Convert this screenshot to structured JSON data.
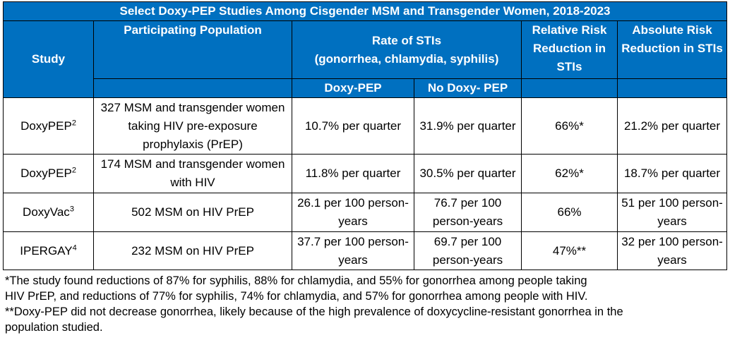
{
  "table": {
    "title": "Select Doxy-PEP Studies Among Cisgender MSM and Transgender Women, 2018-2023",
    "headers": {
      "study": "Study",
      "population": "Participating Population",
      "rate_line1": "Rate of STIs",
      "rate_line2": "(gonorrhea, chlamydia, syphilis)",
      "rrr": "Relative Risk Reduction in STIs",
      "arr": "Absolute Risk Reduction in STIs",
      "doxy_pep": "Doxy-PEP",
      "no_doxy_pep": "No Doxy- PEP"
    },
    "rows": [
      {
        "study": "DoxyPEP",
        "ref": "2",
        "population": "327 MSM and transgender women taking HIV pre-exposure prophylaxis (PrEP)",
        "doxy": "10.7% per quarter",
        "no_doxy": "31.9% per quarter",
        "rrr": "66%*",
        "arr": "21.2% per quarter"
      },
      {
        "study": "DoxyPEP",
        "ref": "2",
        "population": "174 MSM and transgender women with HIV",
        "doxy": "11.8% per quarter",
        "no_doxy": "30.5% per quarter",
        "rrr": "62%*",
        "arr": "18.7% per quarter"
      },
      {
        "study": "DoxyVac",
        "ref": "3",
        "population": "502 MSM on HIV PrEP",
        "doxy": "26.1 per 100 person-years",
        "no_doxy": "76.7 per 100 person-years",
        "rrr": "66%",
        "arr": "51 per 100 person-years"
      },
      {
        "study": "IPERGAY",
        "ref": "4",
        "population": "232 MSM on HIV PrEP",
        "doxy": "37.7 per 100 person-years",
        "no_doxy": "69.7 per 100 person-years",
        "rrr": "47%**",
        "arr": "32 per 100 person-years"
      }
    ]
  },
  "footnotes": {
    "note1_line1": "*The study found reductions of 87% for syphilis, 88% for chlamydia, and 55% for gonorrhea among people taking",
    "note1_line2": "HIV PrEP, and reductions of 77% for syphilis, 74% for chlamydia, and 57% for gonorrhea among people with HIV.",
    "note2_line1": "**Doxy-PEP did not decrease gonorrhea, likely because of the high prevalence of doxycycline-resistant gonorrhea in the",
    "note2_line2": "population studied."
  },
  "colors": {
    "header_bg": "#0070c0",
    "header_text": "#ffffff"
  }
}
